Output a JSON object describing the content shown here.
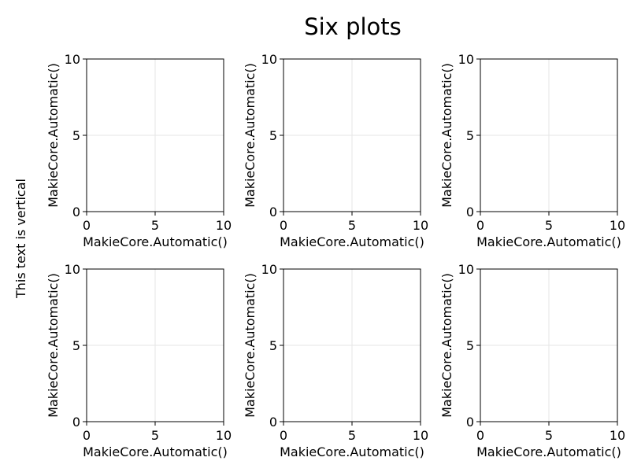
{
  "figure": {
    "title": "Six plots",
    "side_label": "This text is vertical"
  },
  "chart_data": [
    {
      "type": "scatter",
      "xlabel": "MakieCore.Automatic()",
      "ylabel": "MakieCore.Automatic()",
      "xlim": [
        0,
        10
      ],
      "ylim": [
        0,
        10
      ],
      "xticks": [
        "0",
        "5",
        "10"
      ],
      "yticks": [
        "0",
        "5",
        "10"
      ],
      "grid": true,
      "series": []
    },
    {
      "type": "scatter",
      "xlabel": "MakieCore.Automatic()",
      "ylabel": "MakieCore.Automatic()",
      "xlim": [
        0,
        10
      ],
      "ylim": [
        0,
        10
      ],
      "xticks": [
        "0",
        "5",
        "10"
      ],
      "yticks": [
        "0",
        "5",
        "10"
      ],
      "grid": true,
      "series": []
    },
    {
      "type": "scatter",
      "xlabel": "MakieCore.Automatic()",
      "ylabel": "MakieCore.Automatic()",
      "xlim": [
        0,
        10
      ],
      "ylim": [
        0,
        10
      ],
      "xticks": [
        "0",
        "5",
        "10"
      ],
      "yticks": [
        "0",
        "5",
        "10"
      ],
      "grid": true,
      "series": []
    },
    {
      "type": "scatter",
      "xlabel": "MakieCore.Automatic()",
      "ylabel": "MakieCore.Automatic()",
      "xlim": [
        0,
        10
      ],
      "ylim": [
        0,
        10
      ],
      "xticks": [
        "0",
        "5",
        "10"
      ],
      "yticks": [
        "0",
        "5",
        "10"
      ],
      "grid": true,
      "series": []
    },
    {
      "type": "scatter",
      "xlabel": "MakieCore.Automatic()",
      "ylabel": "MakieCore.Automatic()",
      "xlim": [
        0,
        10
      ],
      "ylim": [
        0,
        10
      ],
      "xticks": [
        "0",
        "5",
        "10"
      ],
      "yticks": [
        "0",
        "5",
        "10"
      ],
      "grid": true,
      "series": []
    },
    {
      "type": "scatter",
      "xlabel": "MakieCore.Automatic()",
      "ylabel": "MakieCore.Automatic()",
      "xlim": [
        0,
        10
      ],
      "ylim": [
        0,
        10
      ],
      "xticks": [
        "0",
        "5",
        "10"
      ],
      "yticks": [
        "0",
        "5",
        "10"
      ],
      "grid": true,
      "series": []
    }
  ]
}
